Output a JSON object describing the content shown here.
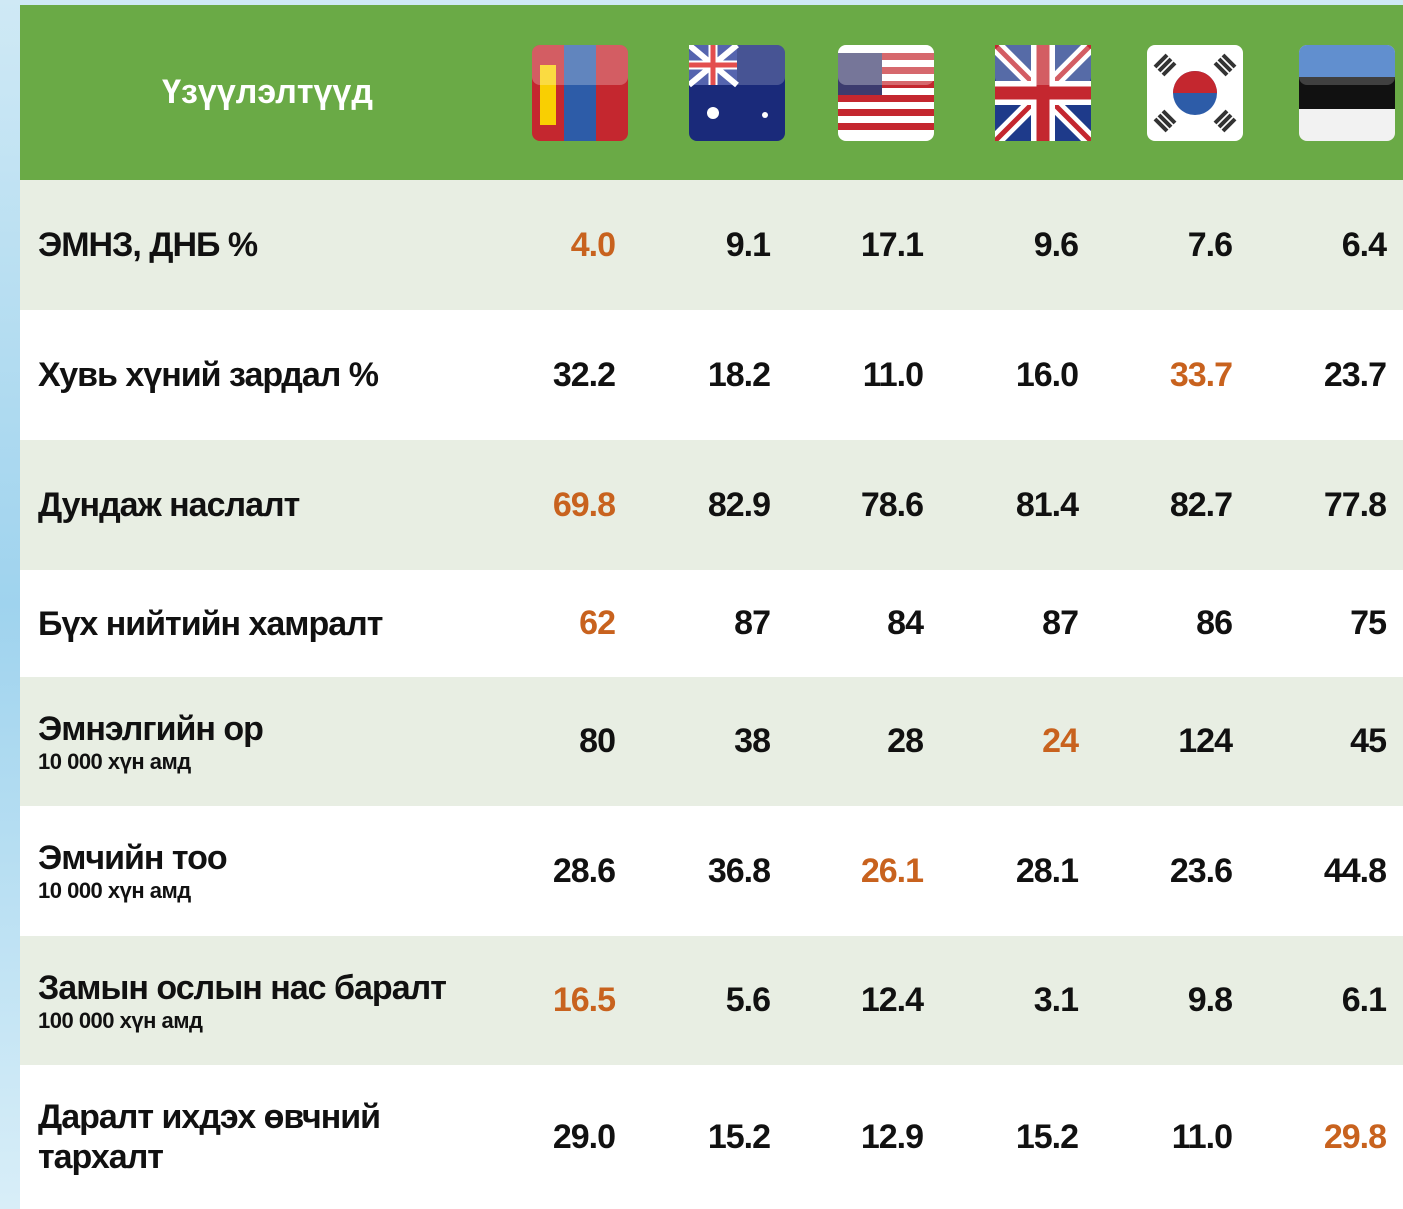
{
  "header": {
    "title": "Үзүүлэлтүүд"
  },
  "highlight_color": "#c8621e",
  "rows": [
    {
      "label": "ЭМНЗ, ДНБ %",
      "values": [
        "4.0",
        "9.1",
        "17.1",
        "9.6",
        "7.6",
        "6.4"
      ],
      "highlight": 0
    },
    {
      "label": "Хувь хүний зардал %",
      "values": [
        "32.2",
        "18.2",
        "11.0",
        "16.0",
        "33.7",
        "23.7"
      ],
      "highlight": 4
    },
    {
      "label": "Дундаж наслалт",
      "values": [
        "69.8",
        "82.9",
        "78.6",
        "81.4",
        "82.7",
        "77.8"
      ],
      "highlight": 0
    },
    {
      "label": "Бүх нийтийн хамралт",
      "values": [
        "62",
        "87",
        "84",
        "87",
        "86",
        "75"
      ],
      "highlight": 0
    },
    {
      "label": "Эмнэлгийн ор",
      "sublabel": "10 000 хүн амд",
      "values": [
        "80",
        "38",
        "28",
        "24",
        "124",
        "45"
      ],
      "highlight": 3
    },
    {
      "label": "Эмчийн тоо",
      "sublabel": "10 000 хүн амд",
      "values": [
        "28.6",
        "36.8",
        "26.1",
        "28.1",
        "23.6",
        "44.8"
      ],
      "highlight": 2
    },
    {
      "label": "Замын ослын нас баралт",
      "sublabel": "100 000 хүн амд",
      "values": [
        "16.5",
        "5.6",
        "12.4",
        "3.1",
        "9.8",
        "6.1"
      ],
      "highlight": 0
    },
    {
      "label": "Даралт ихдэх өвчний тархалт",
      "values": [
        "29.0",
        "15.2",
        "12.9",
        "15.2",
        "11.0",
        "29.8"
      ],
      "highlight": 5
    }
  ]
}
